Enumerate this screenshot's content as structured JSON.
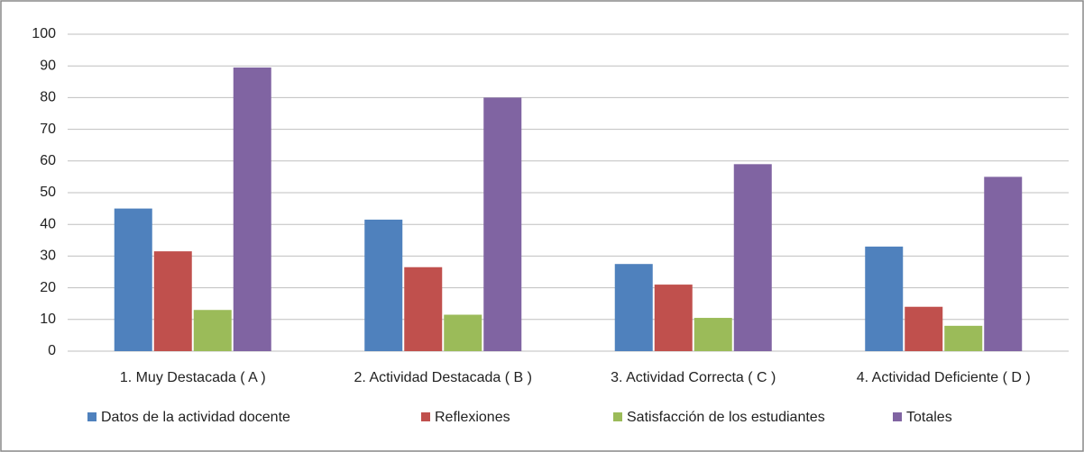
{
  "chart_data": {
    "type": "bar",
    "categories": [
      "1. Muy Destacada ( A )",
      "2. Actividad Destacada ( B )",
      "3. Actividad Correcta ( C )",
      "4. Actividad Deficiente ( D )"
    ],
    "series": [
      {
        "name": "Datos de la actividad docente",
        "color": "#4f81bd",
        "values": [
          45,
          41.5,
          27.5,
          33
        ]
      },
      {
        "name": "Reflexiones",
        "color": "#c0504d",
        "values": [
          31.5,
          26.5,
          21,
          14
        ]
      },
      {
        "name": "Satisfacción de los estudiantes",
        "color": "#9bbb59",
        "values": [
          13,
          11.5,
          10.5,
          8
        ]
      },
      {
        "name": "Totales",
        "color": "#8064a2",
        "values": [
          89.5,
          80,
          59,
          55
        ]
      }
    ],
    "ylim": [
      0,
      100
    ],
    "yticks": [
      0,
      10,
      20,
      30,
      40,
      50,
      60,
      70,
      80,
      90,
      100
    ],
    "grid": true,
    "legend": "bottom"
  }
}
